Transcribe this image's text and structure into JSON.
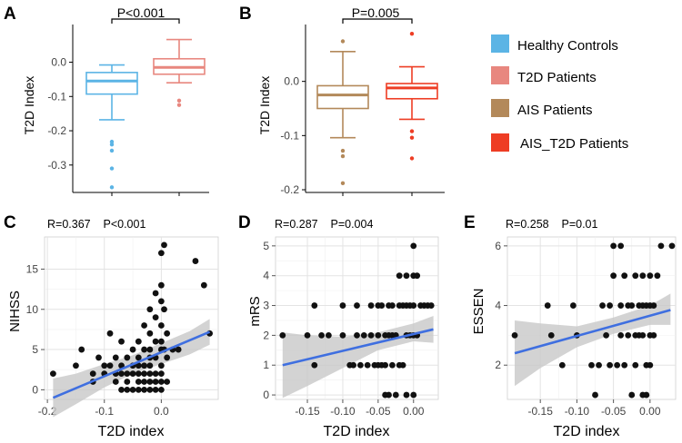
{
  "colors": {
    "healthy": "#5BB4E5",
    "t2d": "#E8877F",
    "ais": "#B3895A",
    "ais_t2d": "#EE3D24",
    "fit": "#3F6FE0",
    "band": "#C8C8C8",
    "point": "#111111"
  },
  "legend": {
    "items": [
      {
        "label": "Healthy Controls",
        "color": "#5BB4E5"
      },
      {
        "label": "T2D Patients",
        "color": "#E8877F"
      },
      {
        "label": "AIS Patients",
        "color": "#B3895A"
      },
      {
        "label": "AIS_T2D Patients",
        "color": "#EE3D24"
      }
    ]
  },
  "chart_data": [
    {
      "panel": "A",
      "type": "box",
      "ylabel": "T2D Index",
      "ylim": [
        -0.38,
        0.11
      ],
      "yticks": [
        0.0,
        -0.1,
        -0.2,
        -0.3
      ],
      "ytick_labels": [
        "0.0",
        "-0.1",
        "-0.2",
        "-0.3"
      ],
      "significance": "P<0.001",
      "groups": [
        {
          "name": "Healthy Controls",
          "color": "#5BB4E5",
          "q1": -0.093,
          "median": -0.055,
          "q3": -0.03,
          "whislo": -0.168,
          "whishi": -0.008,
          "outliers": [
            -0.232,
            -0.24,
            -0.258,
            -0.31,
            -0.365
          ]
        },
        {
          "name": "T2D Patients",
          "color": "#E8877F",
          "q1": -0.035,
          "median": -0.015,
          "q3": 0.01,
          "whislo": -0.06,
          "whishi": 0.066,
          "outliers": [
            -0.112,
            -0.125
          ]
        }
      ]
    },
    {
      "panel": "B",
      "type": "box",
      "ylabel": "T2D Index",
      "ylim": [
        -0.205,
        0.105
      ],
      "yticks": [
        0.0,
        -0.1,
        -0.2
      ],
      "ytick_labels": [
        "0.0",
        "-0.1",
        "-0.2"
      ],
      "significance": "P=0.005",
      "groups": [
        {
          "name": "AIS Patients",
          "color": "#B3895A",
          "q1": -0.05,
          "median": -0.025,
          "q3": -0.008,
          "whislo": -0.104,
          "whishi": 0.055,
          "outliers": [
            0.074,
            -0.128,
            -0.138,
            -0.188
          ]
        },
        {
          "name": "AIS_T2D Patients",
          "color": "#EE3D24",
          "q1": -0.032,
          "median": -0.012,
          "q3": -0.004,
          "whislo": -0.07,
          "whishi": 0.027,
          "outliers": [
            0.088,
            -0.092,
            -0.104,
            -0.142
          ]
        }
      ]
    },
    {
      "panel": "C",
      "type": "scatter",
      "stats": "R=0.367    P<0.001",
      "xlabel": "T2D index",
      "ylabel": "NIHSS",
      "xlim": [
        -0.205,
        0.1
      ],
      "ylim": [
        -1.2,
        19
      ],
      "xticks": [
        -0.2,
        -0.1,
        0.0
      ],
      "xtick_labels": [
        "-0.2",
        "-0.1",
        "0.0"
      ],
      "yticks": [
        0,
        5,
        10,
        15
      ],
      "ytick_labels": [
        "0",
        "5",
        "10",
        "15"
      ],
      "fit": {
        "x": [
          -0.19,
          0.085
        ],
        "y": [
          -1,
          7.2
        ]
      },
      "band": {
        "x": [
          -0.19,
          -0.15,
          -0.1,
          -0.05,
          0.0,
          0.05,
          0.085
        ],
        "upper": [
          1.4,
          2.0,
          3.2,
          4.3,
          5.8,
          7.3,
          8.8
        ],
        "lower": [
          -3.4,
          -1.8,
          0.3,
          2.0,
          3.2,
          4.4,
          5.6
        ]
      },
      "points": [
        [
          -0.19,
          2
        ],
        [
          -0.15,
          3
        ],
        [
          -0.14,
          5
        ],
        [
          -0.12,
          1
        ],
        [
          -0.12,
          2
        ],
        [
          -0.11,
          4
        ],
        [
          -0.1,
          2
        ],
        [
          -0.1,
          3
        ],
        [
          -0.09,
          7
        ],
        [
          -0.09,
          3
        ],
        [
          -0.08,
          2
        ],
        [
          -0.08,
          4
        ],
        [
          -0.08,
          1
        ],
        [
          -0.07,
          6
        ],
        [
          -0.07,
          3
        ],
        [
          -0.07,
          2
        ],
        [
          -0.07,
          0
        ],
        [
          -0.06,
          4
        ],
        [
          -0.06,
          2
        ],
        [
          -0.06,
          1
        ],
        [
          -0.06,
          0
        ],
        [
          -0.05,
          5
        ],
        [
          -0.05,
          3
        ],
        [
          -0.05,
          2
        ],
        [
          -0.05,
          0
        ],
        [
          -0.04,
          6
        ],
        [
          -0.04,
          4
        ],
        [
          -0.04,
          3
        ],
        [
          -0.04,
          2
        ],
        [
          -0.04,
          1
        ],
        [
          -0.04,
          0
        ],
        [
          -0.03,
          8
        ],
        [
          -0.03,
          5
        ],
        [
          -0.03,
          3
        ],
        [
          -0.03,
          2
        ],
        [
          -0.03,
          1
        ],
        [
          -0.03,
          0
        ],
        [
          -0.02,
          10
        ],
        [
          -0.02,
          7
        ],
        [
          -0.02,
          5
        ],
        [
          -0.02,
          4
        ],
        [
          -0.02,
          3
        ],
        [
          -0.02,
          2
        ],
        [
          -0.02,
          1
        ],
        [
          -0.02,
          0
        ],
        [
          -0.01,
          12
        ],
        [
          -0.01,
          9
        ],
        [
          -0.01,
          6
        ],
        [
          -0.01,
          4
        ],
        [
          -0.01,
          2
        ],
        [
          -0.01,
          1
        ],
        [
          -0.01,
          0
        ],
        [
          0.0,
          17
        ],
        [
          0.0,
          13
        ],
        [
          0.0,
          11
        ],
        [
          0.0,
          8
        ],
        [
          0.0,
          6
        ],
        [
          0.0,
          5
        ],
        [
          0.0,
          3
        ],
        [
          0.0,
          2
        ],
        [
          0.0,
          1
        ],
        [
          0.0,
          0
        ],
        [
          0.005,
          18
        ],
        [
          0.005,
          10
        ],
        [
          0.005,
          5
        ],
        [
          0.01,
          7
        ],
        [
          0.01,
          4
        ],
        [
          0.01,
          1
        ],
        [
          0.02,
          5
        ],
        [
          0.03,
          5
        ],
        [
          0.06,
          16
        ],
        [
          0.075,
          13
        ],
        [
          0.085,
          7
        ]
      ]
    },
    {
      "panel": "D",
      "type": "scatter",
      "stats": "R=0.287    P=0.004",
      "xlabel": "T2D index",
      "ylabel": "mRS",
      "xlim": [
        -0.195,
        0.035
      ],
      "ylim": [
        -0.15,
        5.3
      ],
      "xticks": [
        -0.15,
        -0.1,
        -0.05,
        0.0
      ],
      "xtick_labels": [
        "-0.15",
        "-0.10",
        "-0.05",
        "0.00"
      ],
      "yticks": [
        0,
        1,
        2,
        3,
        4,
        5
      ],
      "ytick_labels": [
        "0",
        "1",
        "2",
        "3",
        "4",
        "5"
      ],
      "fit": {
        "x": [
          -0.185,
          0.028
        ],
        "y": [
          1.0,
          2.2
        ]
      },
      "band": {
        "x": [
          -0.185,
          -0.15,
          -0.1,
          -0.05,
          0.0,
          0.028
        ],
        "upper": [
          2.1,
          2.0,
          1.95,
          2.1,
          2.4,
          2.65
        ],
        "lower": [
          -0.1,
          0.3,
          0.9,
          1.5,
          1.8,
          1.75
        ]
      },
      "points": [
        [
          -0.185,
          2
        ],
        [
          -0.15,
          2
        ],
        [
          -0.14,
          1
        ],
        [
          -0.14,
          3
        ],
        [
          -0.13,
          2
        ],
        [
          -0.12,
          2
        ],
        [
          -0.1,
          3
        ],
        [
          -0.1,
          2
        ],
        [
          -0.09,
          1
        ],
        [
          -0.085,
          1
        ],
        [
          -0.08,
          3
        ],
        [
          -0.08,
          2
        ],
        [
          -0.075,
          1
        ],
        [
          -0.07,
          2
        ],
        [
          -0.065,
          1
        ],
        [
          -0.06,
          3
        ],
        [
          -0.06,
          2
        ],
        [
          -0.055,
          1
        ],
        [
          -0.05,
          3
        ],
        [
          -0.05,
          2
        ],
        [
          -0.05,
          1
        ],
        [
          -0.045,
          3
        ],
        [
          -0.045,
          1
        ],
        [
          -0.04,
          0
        ],
        [
          -0.04,
          2
        ],
        [
          -0.04,
          1
        ],
        [
          -0.035,
          0
        ],
        [
          -0.035,
          2
        ],
        [
          -0.035,
          3
        ],
        [
          -0.03,
          1
        ],
        [
          -0.03,
          3
        ],
        [
          -0.03,
          2
        ],
        [
          -0.025,
          0
        ],
        [
          -0.025,
          2
        ],
        [
          -0.02,
          4
        ],
        [
          -0.02,
          3
        ],
        [
          -0.02,
          1
        ],
        [
          -0.015,
          3
        ],
        [
          -0.015,
          1
        ],
        [
          -0.01,
          4
        ],
        [
          -0.01,
          3
        ],
        [
          -0.01,
          2
        ],
        [
          -0.01,
          0
        ],
        [
          -0.005,
          2
        ],
        [
          -0.005,
          3
        ],
        [
          0.0,
          5
        ],
        [
          0.0,
          4
        ],
        [
          0.0,
          3
        ],
        [
          0.0,
          2
        ],
        [
          0.0,
          0
        ],
        [
          0.005,
          4
        ],
        [
          0.005,
          2
        ],
        [
          0.01,
          3
        ],
        [
          0.015,
          3
        ],
        [
          0.02,
          3
        ],
        [
          0.025,
          3
        ]
      ]
    },
    {
      "panel": "E",
      "type": "scatter",
      "stats": "R=0.258    P=0.01",
      "xlabel": "T2D index",
      "ylabel": "ESSEN",
      "xlim": [
        -0.195,
        0.035
      ],
      "ylim": [
        0.85,
        6.3
      ],
      "xticks": [
        -0.15,
        -0.1,
        -0.05,
        0.0
      ],
      "xtick_labels": [
        "-0.15",
        "-0.10",
        "-0.05",
        "0.00"
      ],
      "yticks": [
        2,
        4,
        6
      ],
      "ytick_labels": [
        "2",
        "4",
        "6"
      ],
      "fit": {
        "x": [
          -0.185,
          0.028
        ],
        "y": [
          2.4,
          3.85
        ]
      },
      "band": {
        "x": [
          -0.185,
          -0.15,
          -0.1,
          -0.05,
          0.0,
          0.028
        ],
        "upper": [
          3.5,
          3.4,
          3.3,
          3.6,
          4.0,
          4.4
        ],
        "lower": [
          1.3,
          1.9,
          2.6,
          3.05,
          3.35,
          3.35
        ]
      },
      "points": [
        [
          -0.185,
          3
        ],
        [
          -0.14,
          4
        ],
        [
          -0.135,
          3
        ],
        [
          -0.12,
          2
        ],
        [
          -0.105,
          4
        ],
        [
          -0.1,
          3
        ],
        [
          -0.08,
          2
        ],
        [
          -0.075,
          1
        ],
        [
          -0.07,
          2
        ],
        [
          -0.065,
          4
        ],
        [
          -0.06,
          3
        ],
        [
          -0.055,
          2
        ],
        [
          -0.055,
          4
        ],
        [
          -0.05,
          6
        ],
        [
          -0.05,
          5
        ],
        [
          -0.045,
          2
        ],
        [
          -0.04,
          6
        ],
        [
          -0.04,
          4
        ],
        [
          -0.04,
          3
        ],
        [
          -0.035,
          2
        ],
        [
          -0.035,
          5
        ],
        [
          -0.03,
          4
        ],
        [
          -0.03,
          3
        ],
        [
          -0.025,
          1
        ],
        [
          -0.025,
          4
        ],
        [
          -0.02,
          5
        ],
        [
          -0.02,
          3
        ],
        [
          -0.02,
          2
        ],
        [
          -0.015,
          4
        ],
        [
          -0.015,
          3
        ],
        [
          -0.01,
          5
        ],
        [
          -0.01,
          4
        ],
        [
          -0.01,
          3
        ],
        [
          -0.01,
          1
        ],
        [
          -0.005,
          4
        ],
        [
          -0.005,
          2
        ],
        [
          -0.005,
          1
        ],
        [
          0.0,
          5
        ],
        [
          0.0,
          4
        ],
        [
          0.0,
          3
        ],
        [
          0.0,
          2
        ],
        [
          0.005,
          4
        ],
        [
          0.005,
          3
        ],
        [
          0.01,
          5
        ],
        [
          0.015,
          6
        ],
        [
          0.03,
          6
        ]
      ]
    }
  ]
}
